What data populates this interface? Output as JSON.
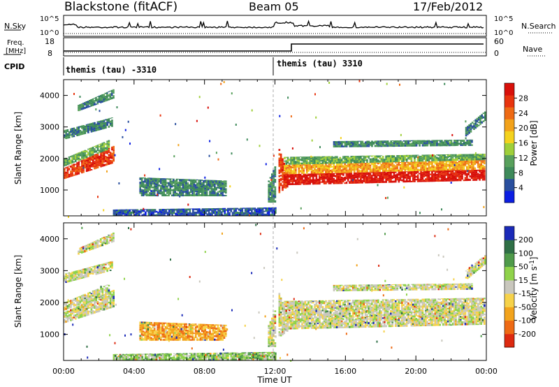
{
  "header": {
    "station": "Blackstone (fitACF)",
    "beam": "Beam 05",
    "date": "17/Feb/2012"
  },
  "summary_panels": {
    "nsky": {
      "label": "N.Sky",
      "ticks": [
        "10^5",
        "10^0"
      ]
    },
    "nsearch": {
      "label": "N.Search",
      "ticks": [
        "10^5",
        "10^0"
      ]
    },
    "freq": {
      "label_line1": "Freq.",
      "label_line2": "[MHz]",
      "ticks": [
        "18",
        "8"
      ]
    },
    "nave": {
      "label": "Nave",
      "ticks": [
        "60",
        "0"
      ]
    },
    "cpid": {
      "label": "CPID",
      "segments": [
        {
          "name": "themis (tau) -3310",
          "start_hour": 0
        },
        {
          "name": "themis (tau) 3310",
          "start_hour": 12.1
        }
      ]
    }
  },
  "chart_data": [
    {
      "type": "heatmap",
      "panel": "power",
      "ylabel": "Slant Range [km]",
      "colorbar_label": "Power [dB]",
      "colorbar_ticks": [
        "28",
        "24",
        "20",
        "16",
        "12",
        "8",
        "4"
      ],
      "colors": [
        "#0b1ee3",
        "#2a4f9e",
        "#3e8a5a",
        "#58a05c",
        "#9fcf3a",
        "#f4d21e",
        "#f2a21a",
        "#ee6a14",
        "#e8340e",
        "#d8100a"
      ],
      "ylim": [
        180,
        4500
      ],
      "xlim": [
        0,
        24
      ],
      "yticks": [
        1000,
        2000,
        3000,
        4000
      ],
      "xticks": [
        0,
        4,
        8,
        12,
        16,
        20,
        24
      ],
      "bands": [
        {
          "x0": 0,
          "x1": 2.8,
          "y0": 1350,
          "y1": 1700,
          "y0_end": 1850,
          "y1_end": 2400,
          "level": 8
        },
        {
          "x0": 0,
          "x1": 2.6,
          "y0": 1750,
          "y1": 2000,
          "y0_end": 2300,
          "y1_end": 2600,
          "level": 3
        },
        {
          "x0": 0,
          "x1": 2.7,
          "y0": 2600,
          "y1": 2900,
          "y0_end": 3000,
          "y1_end": 3300,
          "level": 2
        },
        {
          "x0": 0.8,
          "x1": 2.8,
          "y0": 3500,
          "y1": 3700,
          "y0_end": 3900,
          "y1_end": 4200,
          "level": 2
        },
        {
          "x0": 4.3,
          "x1": 9.2,
          "y0": 800,
          "y1": 1400,
          "y0_end": 800,
          "y1_end": 1300,
          "level": 2
        },
        {
          "x0": 2.8,
          "x1": 12.0,
          "y0": 180,
          "y1": 380,
          "y0_end": 180,
          "y1_end": 450,
          "level": 1
        },
        {
          "x0": 11.6,
          "x1": 12.0,
          "y0": 600,
          "y1": 1300,
          "y0_end": 600,
          "y1_end": 1800,
          "level": 2
        },
        {
          "x0": 12.2,
          "x1": 12.7,
          "y0": 900,
          "y1": 2300,
          "y0_end": 1100,
          "y1_end": 1500,
          "level": 8
        },
        {
          "x0": 12.5,
          "x1": 23.9,
          "y0": 1150,
          "y1": 1500,
          "y0_end": 1300,
          "y1_end": 1650,
          "level": 9
        },
        {
          "x0": 12.5,
          "x1": 23.9,
          "y0": 1500,
          "y1": 1800,
          "y0_end": 1650,
          "y1_end": 1950,
          "level": 6
        },
        {
          "x0": 12.5,
          "x1": 23.9,
          "y0": 1800,
          "y1": 2050,
          "y0_end": 1950,
          "y1_end": 2150,
          "level": 3
        },
        {
          "x0": 15.3,
          "x1": 23.2,
          "y0": 2350,
          "y1": 2550,
          "y0_end": 2400,
          "y1_end": 2600,
          "level": 2
        },
        {
          "x0": 22.8,
          "x1": 23.9,
          "y0": 2700,
          "y1": 3000,
          "y0_end": 3200,
          "y1_end": 3500,
          "level": 2
        }
      ]
    },
    {
      "type": "heatmap",
      "panel": "velocity",
      "ylabel": "Slant Range [km]",
      "xlabel": "Time UT",
      "colorbar_label": "Velocity [m s^-1]",
      "colorbar_ticks": [
        "200",
        "100",
        "50",
        "15",
        "-15",
        "-50",
        "-100",
        "-200"
      ],
      "colors": [
        "#1a2ab8",
        "#2f6f46",
        "#4f9a4a",
        "#8fd24a",
        "#c9c7bd",
        "#f6d24a",
        "#f2a31c",
        "#ee6a14",
        "#dd2a10"
      ],
      "ylim": [
        180,
        4500
      ],
      "xlim": [
        0,
        24
      ],
      "yticks": [
        1000,
        2000,
        3000,
        4000
      ],
      "xticks": [
        0,
        4,
        8,
        12,
        16,
        20,
        24
      ],
      "xticklabels": [
        "00:00",
        "04:00",
        "08:00",
        "12:00",
        "16:00",
        "20:00",
        "00:00"
      ],
      "bands": [
        {
          "x0": 0,
          "x1": 2.8,
          "y0": 1350,
          "y1": 1700,
          "y0_end": 1850,
          "y1_end": 2400,
          "level": 4
        },
        {
          "x0": 0,
          "x1": 2.6,
          "y0": 1750,
          "y1": 2000,
          "y0_end": 2300,
          "y1_end": 2600,
          "level": 4
        },
        {
          "x0": 0,
          "x1": 2.7,
          "y0": 2600,
          "y1": 2900,
          "y0_end": 3000,
          "y1_end": 3300,
          "level": 4
        },
        {
          "x0": 0.8,
          "x1": 2.8,
          "y0": 3500,
          "y1": 3700,
          "y0_end": 3900,
          "y1_end": 4200,
          "level": 4
        },
        {
          "x0": 4.3,
          "x1": 9.2,
          "y0": 800,
          "y1": 1400,
          "y0_end": 800,
          "y1_end": 1300,
          "level": 6
        },
        {
          "x0": 2.8,
          "x1": 12.0,
          "y0": 180,
          "y1": 380,
          "y0_end": 180,
          "y1_end": 450,
          "level": 3
        },
        {
          "x0": 11.6,
          "x1": 12.0,
          "y0": 600,
          "y1": 1300,
          "y0_end": 600,
          "y1_end": 1800,
          "level": 4
        },
        {
          "x0": 12.2,
          "x1": 12.7,
          "y0": 900,
          "y1": 2300,
          "y0_end": 1100,
          "y1_end": 1500,
          "level": 4
        },
        {
          "x0": 12.5,
          "x1": 23.9,
          "y0": 1150,
          "y1": 1500,
          "y0_end": 1300,
          "y1_end": 1650,
          "level": 4
        },
        {
          "x0": 12.5,
          "x1": 23.9,
          "y0": 1500,
          "y1": 1800,
          "y0_end": 1650,
          "y1_end": 1950,
          "level": 4
        },
        {
          "x0": 12.5,
          "x1": 23.9,
          "y0": 1800,
          "y1": 2050,
          "y0_end": 1950,
          "y1_end": 2150,
          "level": 4
        },
        {
          "x0": 15.3,
          "x1": 23.2,
          "y0": 2350,
          "y1": 2550,
          "y0_end": 2400,
          "y1_end": 2600,
          "level": 4
        },
        {
          "x0": 22.8,
          "x1": 23.9,
          "y0": 2700,
          "y1": 3000,
          "y0_end": 3200,
          "y1_end": 3500,
          "level": 4
        }
      ]
    }
  ]
}
